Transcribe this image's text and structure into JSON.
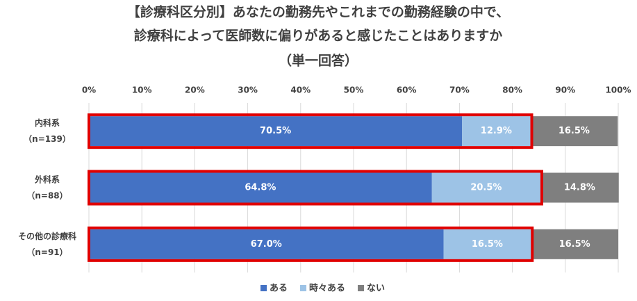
{
  "chart_data": {
    "type": "stacked_bar_h",
    "title": [
      "【診療科区分別】あなたの勤務先やこれまでの勤務経験の中で、",
      "診療科によって医師数に偏りがあると感じたことはありますか",
      "（単一回答）"
    ],
    "categories": [
      "内科系",
      "外科系",
      "その他の診療科"
    ],
    "category_notes": [
      "（n=139）",
      "（n=88）",
      "（n=91）"
    ],
    "series": [
      {
        "name": "ある",
        "color": "#4472c4",
        "values": [
          70.5,
          64.8,
          67.0
        ],
        "value_labels": [
          "70.5%",
          "64.8%",
          "67.0%"
        ]
      },
      {
        "name": "時々ある",
        "color": "#9dc3e6",
        "values": [
          12.9,
          20.5,
          16.5
        ],
        "value_labels": [
          "12.9%",
          "20.5%",
          "16.5%"
        ]
      },
      {
        "name": "ない",
        "color": "#7f7f7f",
        "values": [
          16.5,
          14.8,
          16.5
        ],
        "value_labels": [
          "16.5%",
          "14.8%",
          "16.5%"
        ]
      }
    ],
    "xlim": [
      0,
      100
    ],
    "xticks": [
      {
        "value": 0,
        "label": "0%"
      },
      {
        "value": 10,
        "label": "10%"
      },
      {
        "value": 20,
        "label": "20%"
      },
      {
        "value": 30,
        "label": "30%"
      },
      {
        "value": 40,
        "label": "40%"
      },
      {
        "value": 50,
        "label": "50%"
      },
      {
        "value": 60,
        "label": "60%"
      },
      {
        "value": 70,
        "label": "70%"
      },
      {
        "value": 80,
        "label": "80%"
      },
      {
        "value": 90,
        "label": "90%"
      },
      {
        "value": 100,
        "label": "100%"
      }
    ],
    "grid": true,
    "legend": "bottom"
  }
}
